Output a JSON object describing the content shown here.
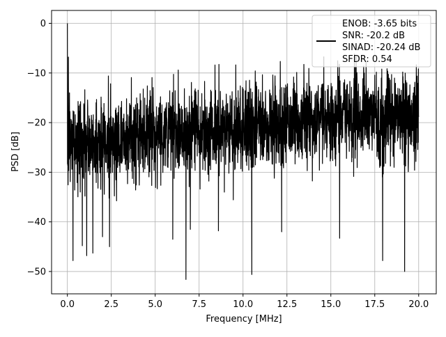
{
  "chart_data": {
    "type": "line",
    "title": "",
    "xlabel": "Frequency [MHz]",
    "ylabel": "PSD [dB]",
    "xlim": [
      -0.9,
      21.0
    ],
    "ylim": [
      -54.5,
      2.6
    ],
    "grid": true,
    "line_color": "#000000",
    "x_ticks": [
      {
        "value": 0.0,
        "label": "0.0"
      },
      {
        "value": 2.5,
        "label": "2.5"
      },
      {
        "value": 5.0,
        "label": "5.0"
      },
      {
        "value": 7.5,
        "label": "7.5"
      },
      {
        "value": 10.0,
        "label": "10.0"
      },
      {
        "value": 12.5,
        "label": "12.5"
      },
      {
        "value": 15.0,
        "label": "15.0"
      },
      {
        "value": 17.5,
        "label": "17.5"
      },
      {
        "value": 20.0,
        "label": "20.0"
      }
    ],
    "y_ticks": [
      {
        "value": 0,
        "label": "0"
      },
      {
        "value": -10,
        "label": "−10"
      },
      {
        "value": -20,
        "label": "−20"
      },
      {
        "value": -30,
        "label": "−30"
      },
      {
        "value": -40,
        "label": "−40"
      },
      {
        "value": -50,
        "label": "−50"
      }
    ],
    "legend": {
      "placement": "top-right",
      "entries": [
        "ENOB: -3.65 bits",
        "SNR: -20.2 dB",
        "SINAD: -20.24 dB",
        "SFDR: 0.54"
      ]
    },
    "series": [
      {
        "x_range": [
          0.0,
          20.0
        ],
        "baseline_y": [
          [
            0.0,
            -24
          ],
          [
            1.0,
            -24.5
          ],
          [
            2.5,
            -23.5
          ],
          [
            5.0,
            -22
          ],
          [
            7.5,
            -21.5
          ],
          [
            10.0,
            -21
          ],
          [
            12.5,
            -20
          ],
          [
            15.0,
            -19
          ],
          [
            17.5,
            -19
          ],
          [
            20.0,
            -19
          ]
        ],
        "peaks": [
          {
            "x": 0.0,
            "y": 0.0
          },
          {
            "x": 0.06,
            "y": -6.8
          },
          {
            "x": 0.12,
            "y": -14.0
          }
        ],
        "dips": [
          {
            "x": 0.32,
            "y": -47.8
          },
          {
            "x": 0.85,
            "y": -44.8
          },
          {
            "x": 1.1,
            "y": -46.8
          },
          {
            "x": 1.45,
            "y": -46.3
          },
          {
            "x": 2.0,
            "y": -43.0
          },
          {
            "x": 2.4,
            "y": -45.0
          },
          {
            "x": 6.0,
            "y": -43.5
          },
          {
            "x": 6.75,
            "y": -51.6
          },
          {
            "x": 7.0,
            "y": -41.5
          },
          {
            "x": 8.6,
            "y": -41.8
          },
          {
            "x": 10.5,
            "y": -50.6
          },
          {
            "x": 12.2,
            "y": -42.0
          },
          {
            "x": 15.5,
            "y": -43.3
          },
          {
            "x": 17.95,
            "y": -47.8
          },
          {
            "x": 19.2,
            "y": -50.0
          }
        ]
      }
    ]
  }
}
